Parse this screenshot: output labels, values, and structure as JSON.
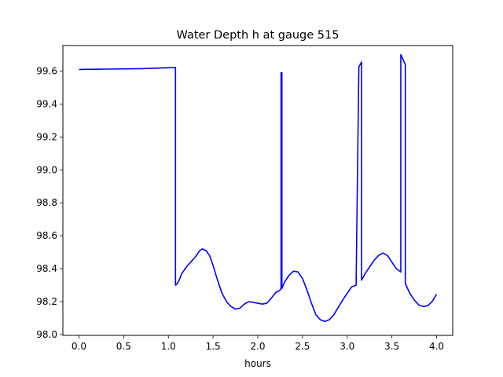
{
  "chart_data": {
    "type": "line",
    "title": "Water Depth h at gauge 515",
    "xlabel": "hours",
    "ylabel": "",
    "xlim": [
      -0.18,
      4.18
    ],
    "ylim": [
      97.995,
      99.755
    ],
    "grid": false,
    "legend": "none",
    "xticks": [
      0.0,
      0.5,
      1.0,
      1.5,
      2.0,
      2.5,
      3.0,
      3.5,
      4.0
    ],
    "xtick_labels": [
      "0.0",
      "0.5",
      "1.0",
      "1.5",
      "2.0",
      "2.5",
      "3.0",
      "3.5",
      "4.0"
    ],
    "yticks": [
      98.0,
      98.2,
      98.4,
      98.6,
      98.8,
      99.0,
      99.2,
      99.4,
      99.6
    ],
    "ytick_labels": [
      "98.0",
      "98.2",
      "98.4",
      "98.6",
      "98.8",
      "99.0",
      "99.2",
      "99.4",
      "99.6"
    ],
    "series": [
      {
        "color": "#0000ff",
        "x": [
          0.0,
          0.3,
          0.7,
          1.08,
          1.08,
          1.1,
          1.12,
          1.15,
          1.2,
          1.25,
          1.3,
          1.35,
          1.38,
          1.42,
          1.46,
          1.5,
          1.55,
          1.6,
          1.65,
          1.7,
          1.75,
          1.8,
          1.85,
          1.9,
          1.95,
          2.0,
          2.05,
          2.1,
          2.15,
          2.2,
          2.25,
          2.26,
          2.26,
          2.27,
          2.27,
          2.3,
          2.35,
          2.4,
          2.45,
          2.5,
          2.55,
          2.6,
          2.65,
          2.7,
          2.75,
          2.8,
          2.85,
          2.9,
          2.95,
          3.0,
          3.05,
          3.1,
          3.13,
          3.13,
          3.16,
          3.16,
          3.2,
          3.25,
          3.3,
          3.35,
          3.4,
          3.45,
          3.5,
          3.55,
          3.6,
          3.6,
          3.65,
          3.65,
          3.7,
          3.75,
          3.8,
          3.85,
          3.9,
          3.95,
          4.0
        ],
        "y": [
          99.61,
          99.612,
          99.615,
          99.622,
          98.3,
          98.31,
          98.33,
          98.37,
          98.41,
          98.44,
          98.47,
          98.51,
          98.52,
          98.51,
          98.48,
          98.42,
          98.33,
          98.25,
          98.2,
          98.17,
          98.155,
          98.16,
          98.185,
          98.2,
          98.195,
          98.19,
          98.185,
          98.19,
          98.22,
          98.255,
          98.27,
          98.28,
          99.59,
          99.59,
          98.28,
          98.32,
          98.36,
          98.385,
          98.38,
          98.34,
          98.27,
          98.19,
          98.12,
          98.09,
          98.08,
          98.09,
          98.12,
          98.165,
          98.21,
          98.25,
          98.29,
          98.3,
          99.625,
          99.625,
          99.655,
          98.33,
          98.37,
          98.41,
          98.45,
          98.48,
          98.495,
          98.48,
          98.44,
          98.4,
          98.38,
          99.7,
          99.64,
          98.31,
          98.25,
          98.21,
          98.18,
          98.17,
          98.175,
          98.2,
          98.245
        ]
      }
    ]
  }
}
